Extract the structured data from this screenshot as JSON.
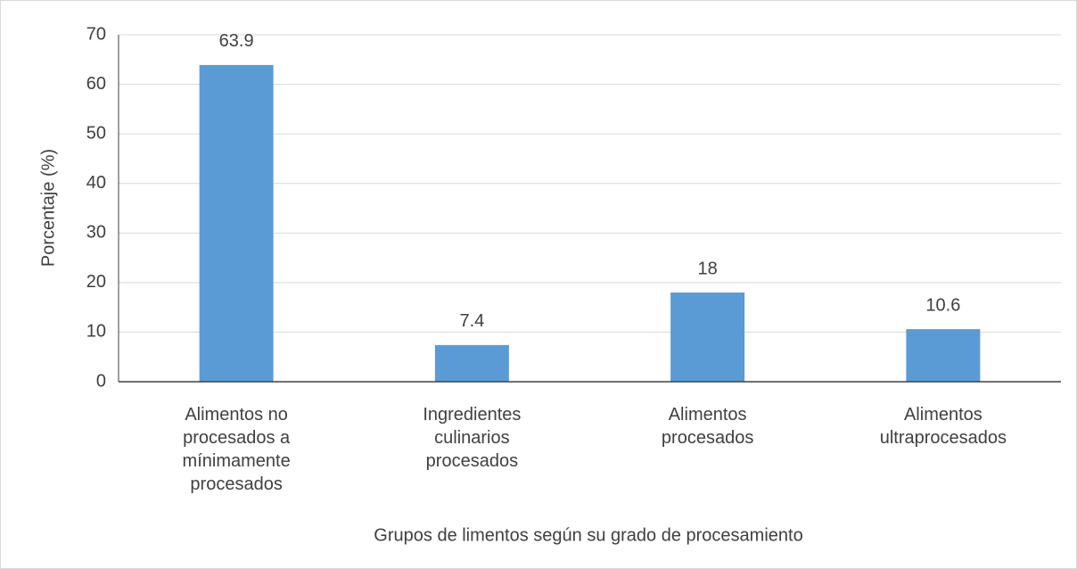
{
  "chart_data": {
    "type": "bar",
    "categories": [
      "Alimentos no procesados a mínimamente procesados",
      "Ingredientes culinarios procesados",
      "Alimentos procesados",
      "Alimentos ultraprocesados"
    ],
    "values": [
      63.9,
      7.4,
      18,
      10.6
    ],
    "color": "#5b9bd5",
    "ylim": [
      0,
      70
    ],
    "yticks": [
      0,
      10,
      20,
      30,
      40,
      50,
      60,
      70
    ],
    "grid": true,
    "ylabel": "Porcentaje (%)",
    "xlabel": "Grupos de limentos según su grado de procesamiento"
  }
}
